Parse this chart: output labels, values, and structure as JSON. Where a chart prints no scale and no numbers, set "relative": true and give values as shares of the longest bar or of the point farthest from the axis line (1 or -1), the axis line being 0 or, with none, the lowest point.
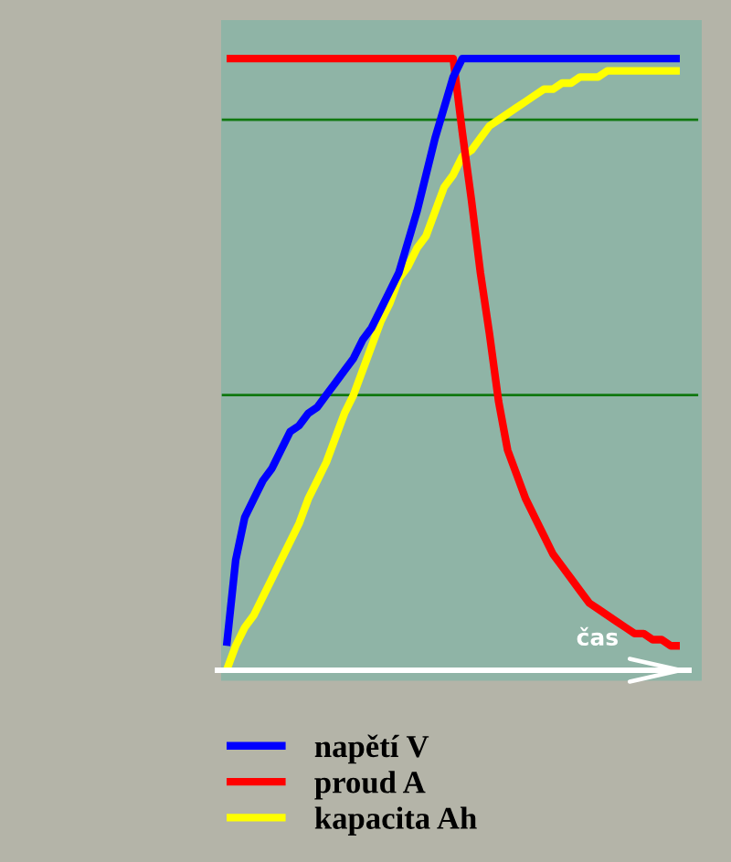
{
  "chart_data": {
    "type": "line",
    "relative": true,
    "xlabel": "čas",
    "legend": "bottom",
    "categories": [
      null,
      null,
      null,
      null,
      null,
      null,
      null,
      null,
      null,
      null,
      null,
      null,
      null,
      null,
      null,
      null,
      null,
      null,
      null,
      null,
      null,
      null,
      null,
      null,
      null,
      null,
      null,
      null,
      null,
      null,
      null,
      null,
      null,
      null,
      null,
      null,
      null,
      null,
      null,
      null,
      null,
      null,
      null,
      null,
      null,
      null,
      null,
      null,
      null,
      null,
      null
    ],
    "ref_lines": [
      {
        "axis": "y",
        "value": 0.9,
        "color": "#107810"
      },
      {
        "axis": "y",
        "value": 0.45,
        "color": "#107810"
      }
    ],
    "series": [
      {
        "name": "napětí V",
        "color": "#0000ff",
        "values": [
          0.04,
          0.18,
          0.25,
          0.28,
          0.31,
          0.33,
          0.36,
          0.39,
          0.4,
          0.42,
          0.43,
          0.45,
          0.47,
          0.49,
          0.51,
          0.54,
          0.56,
          0.59,
          0.62,
          0.65,
          0.7,
          0.75,
          0.81,
          0.87,
          0.92,
          0.97,
          1.0,
          1.0,
          1.0,
          1.0,
          1.0,
          1.0,
          1.0,
          1.0,
          1.0,
          1.0,
          1.0,
          1.0,
          1.0,
          1.0,
          1.0,
          1.0,
          1.0,
          1.0,
          1.0,
          1.0,
          1.0,
          1.0,
          1.0,
          1.0,
          1.0
        ]
      },
      {
        "name": "proud A",
        "color": "#ff0000",
        "values": [
          1.0,
          1.0,
          1.0,
          1.0,
          1.0,
          1.0,
          1.0,
          1.0,
          1.0,
          1.0,
          1.0,
          1.0,
          1.0,
          1.0,
          1.0,
          1.0,
          1.0,
          1.0,
          1.0,
          1.0,
          1.0,
          1.0,
          1.0,
          1.0,
          1.0,
          1.0,
          0.88,
          0.77,
          0.65,
          0.55,
          0.44,
          0.36,
          0.32,
          0.28,
          0.25,
          0.22,
          0.19,
          0.17,
          0.15,
          0.13,
          0.11,
          0.1,
          0.09,
          0.08,
          0.07,
          0.06,
          0.06,
          0.05,
          0.05,
          0.04,
          0.04
        ]
      },
      {
        "name": "kapacita Ah",
        "color": "#ffff00",
        "values": [
          0.0,
          0.04,
          0.07,
          0.09,
          0.12,
          0.15,
          0.18,
          0.21,
          0.24,
          0.28,
          0.31,
          0.34,
          0.38,
          0.42,
          0.45,
          0.49,
          0.53,
          0.57,
          0.6,
          0.64,
          0.66,
          0.69,
          0.71,
          0.75,
          0.79,
          0.81,
          0.84,
          0.85,
          0.87,
          0.89,
          0.9,
          0.91,
          0.92,
          0.93,
          0.94,
          0.95,
          0.95,
          0.96,
          0.96,
          0.97,
          0.97,
          0.97,
          0.98,
          0.98,
          0.98,
          0.98,
          0.98,
          0.98,
          0.98,
          0.98,
          0.98
        ]
      }
    ]
  }
}
